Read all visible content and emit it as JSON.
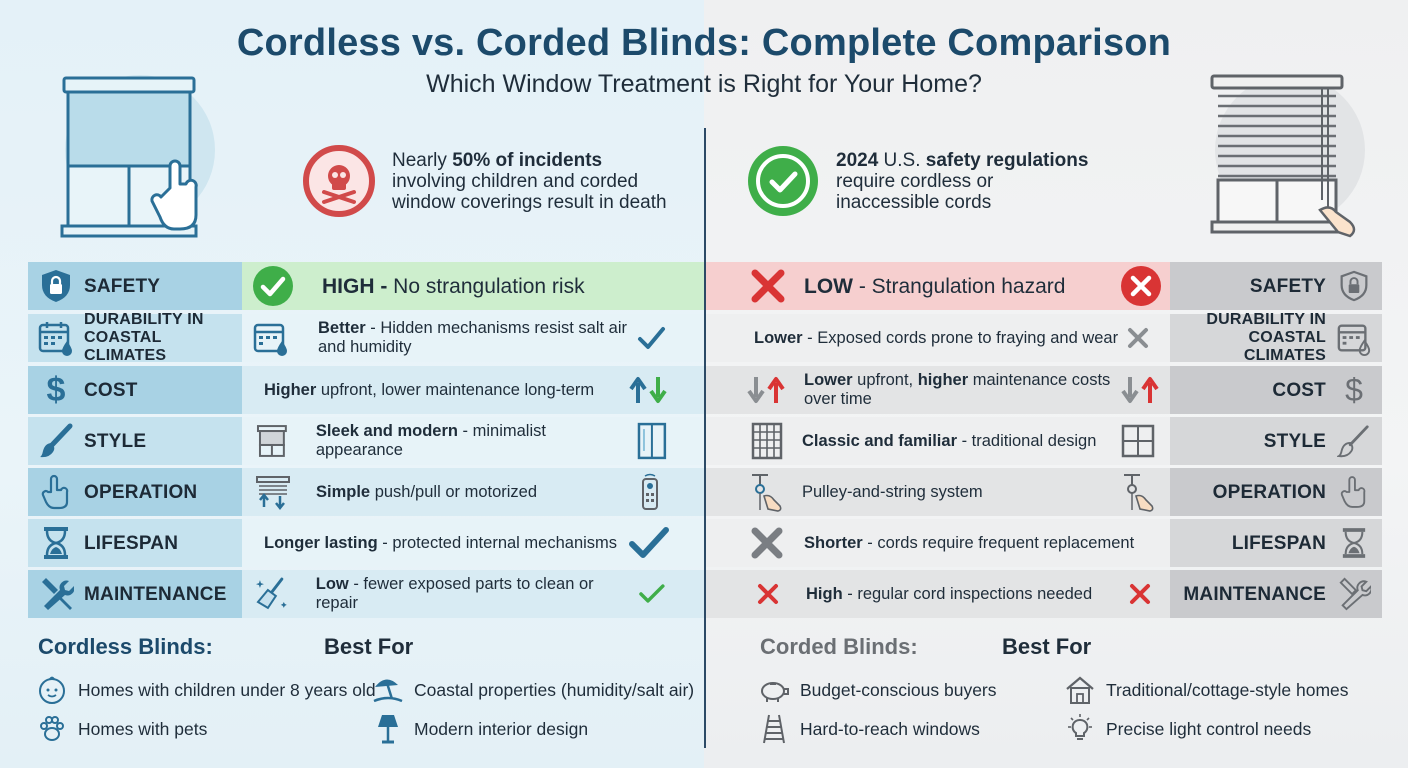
{
  "header": {
    "title": "Cordless vs. Corded Blinds: Complete Comparison",
    "subtitle": "Which Window Treatment is Right for Your Home?"
  },
  "stats": {
    "left": {
      "line1_pre": "Nearly ",
      "line1_bold": "50% of incidents",
      "line2": "involving children and corded",
      "line3": "window coverings result in death"
    },
    "right": {
      "line1_bold_a": "2024",
      "line1_mid": " U.S. ",
      "line1_bold_b": "safety regulations",
      "line2": "require cordless or",
      "line3": "inaccessible cords"
    }
  },
  "rows": [
    {
      "category": "SAFETY",
      "left_bold": "HIGH -",
      "left_rest": " No strangulation risk",
      "right_bold": "LOW",
      "right_rest": " - Strangulation hazard"
    },
    {
      "category_line1": "DURABILITY IN",
      "category_line2": "COASTAL CLIMATES",
      "left_bold": "Better",
      "left_rest": " - Hidden mechanisms resist salt air",
      "left_line2": "and humidity",
      "right_bold": "Lower",
      "right_rest": " - Exposed cords prone to fraying and wear"
    },
    {
      "category": "COST",
      "left_bold": "Higher",
      "left_rest": " upfront, lower maintenance long-term",
      "right_bold": "Lower",
      "right_rest": " upfront, ",
      "right_bold2": "higher",
      "right_rest2": " maintenance costs",
      "right_line2": "over time"
    },
    {
      "category": "STYLE",
      "left_bold": "Sleek and modern",
      "left_rest": " - minimalist appearance",
      "right_bold": "Classic and familiar",
      "right_rest": " - traditional design"
    },
    {
      "category": "OPERATION",
      "left_bold": "Simple",
      "left_rest": " push/pull or motorized",
      "right_bold": "",
      "right_rest": "Pulley-and-string system"
    },
    {
      "category": "LIFESPAN",
      "left_bold": "Longer lasting",
      "left_rest": " - protected internal mechanisms",
      "right_bold": "Shorter",
      "right_rest": " - cords require frequent replacement"
    },
    {
      "category": "MAINTENANCE",
      "left_bold": "Low",
      "left_rest": " - fewer exposed parts to clean or repair",
      "right_bold": "High",
      "right_rest": " - regular cord inspections needed"
    }
  ],
  "best_for": {
    "left_title": "Cordless Blinds:",
    "left_heading": "Best For",
    "left_items": [
      "Homes with children under 8 years old",
      "Coastal properties (humidity/salt air)",
      "Homes with pets",
      "Modern interior design"
    ],
    "right_title": "Corded Blinds:",
    "right_heading": "Best For",
    "right_items": [
      "Budget-conscious buyers",
      "Traditional/cottage-style homes",
      "Hard-to-reach windows",
      "Precise light control needs"
    ]
  },
  "colors": {
    "title": "#1c4a6b",
    "check_green": "#3fae49",
    "cross_red": "#d93434",
    "safety_high_bg": "#cdeecd",
    "safety_low_bg": "#f6cfcf",
    "icon_blue": "#2a6f97",
    "icon_gray": "#6b6f74"
  },
  "icons": [
    "shield-lock-icon",
    "calendar-drop-icon",
    "dollar-icon",
    "paintbrush-icon",
    "hand-pointer-icon",
    "hourglass-icon",
    "wrench-screwdriver-icon",
    "skull-icon",
    "check-circle-icon",
    "cross-circle-icon",
    "baby-icon",
    "beach-umbrella-icon",
    "paw-icon",
    "lamp-icon",
    "piggy-bank-icon",
    "house-icon",
    "ladder-icon",
    "lightbulb-icon"
  ]
}
